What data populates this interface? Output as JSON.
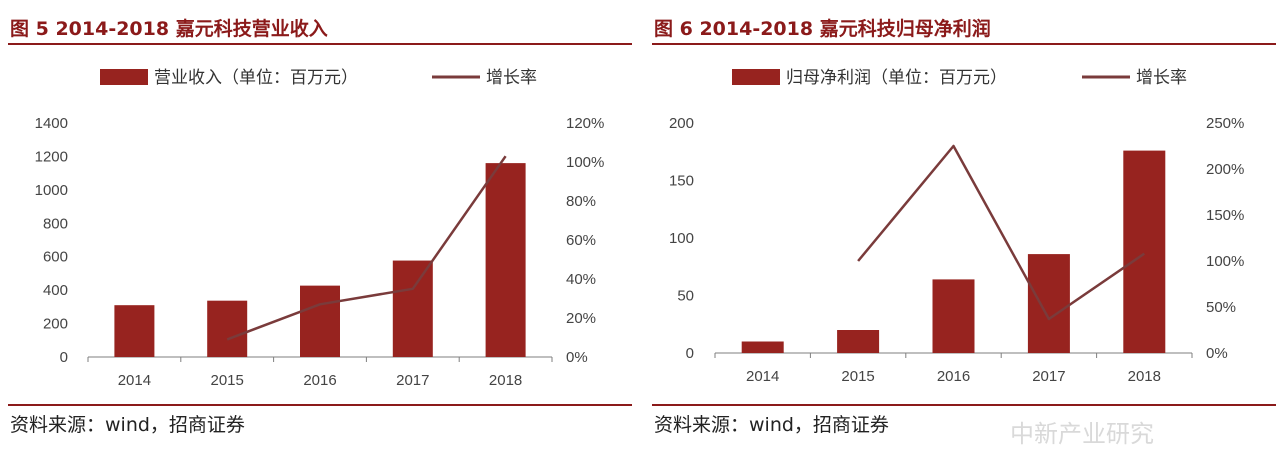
{
  "colors": {
    "bar": "#97231f",
    "line": "#7a3b3b",
    "heading": "#8b1a1a",
    "axis": "#7f7f7f"
  },
  "left": {
    "figure_title": "图 5 2014-2018 嘉元科技营业收入",
    "source": "资料来源：wind，招商证券",
    "chart_data": {
      "type": "bar",
      "categories": [
        "2014",
        "2015",
        "2016",
        "2017",
        "2018"
      ],
      "series": [
        {
          "name": "营业收入（单位：百万元）",
          "type": "bar",
          "axis": "left",
          "values": [
            310,
            337,
            427,
            577,
            1160
          ]
        },
        {
          "name": "增长率",
          "type": "line",
          "axis": "right",
          "values": [
            null,
            9,
            27,
            35,
            103
          ]
        }
      ],
      "ylim": [
        0,
        1400
      ],
      "y_ticks": [
        "0",
        "200",
        "400",
        "600",
        "800",
        "1000",
        "1200",
        "1400"
      ],
      "y2lim": [
        0,
        120
      ],
      "y2_ticks": [
        "0%",
        "20%",
        "40%",
        "60%",
        "80%",
        "100%",
        "120%"
      ],
      "legend_position": "top"
    }
  },
  "right": {
    "figure_title": "图 6 2014-2018  嘉元科技归母净利润",
    "source": "资料来源：wind，招商证券",
    "chart_data": {
      "type": "bar",
      "categories": [
        "2014",
        "2015",
        "2016",
        "2017",
        "2018"
      ],
      "series": [
        {
          "name": "归母净利润（单位：百万元）",
          "type": "bar",
          "axis": "left",
          "values": [
            10,
            20,
            64,
            86,
            176
          ]
        },
        {
          "name": "增长率",
          "type": "line",
          "axis": "right",
          "values": [
            null,
            100,
            225,
            37,
            108
          ]
        }
      ],
      "ylim": [
        0,
        200
      ],
      "y_ticks": [
        "0",
        "50",
        "100",
        "150",
        "200"
      ],
      "y2lim": [
        0,
        250
      ],
      "y2_ticks": [
        "0%",
        "50%",
        "100%",
        "150%",
        "200%",
        "250%"
      ],
      "legend_position": "top"
    }
  },
  "watermark": "中新产业研究"
}
